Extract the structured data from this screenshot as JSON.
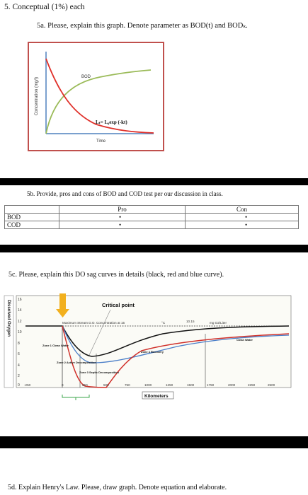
{
  "q5": {
    "title": "5. Conceptual (1%) each"
  },
  "q5a": {
    "text": "5a. Please, explain this graph. Denote parameter as BOD(t) and BODₖ.",
    "figure": {
      "y_label": "Concentration (mg/l)",
      "x_label": "Time",
      "curve1_label": "BOD",
      "curve2_label": "Lₜ= L₀exp (-kt)"
    }
  },
  "q5b": {
    "text": "5b. Provide, pros and cons of BOD and COD test per our discussion in class.",
    "table": {
      "headers": [
        "",
        "Pro",
        "Con"
      ],
      "rows": [
        {
          "label": "BOD",
          "pro": "•",
          "con": "•"
        },
        {
          "label": "COD",
          "pro": "•",
          "con": "•"
        }
      ]
    }
  },
  "q5c": {
    "text": "5c. Please, explain this DO sag curves in details (black, red and blue curve).",
    "figure": {
      "y_label_vertical": "Dissolved Oxygen",
      "critical_point_label": "Critical point",
      "max_stream_label": "Maximum Stream D.O. Concentration at 15",
      "temp_label": "°C",
      "temp_value": "10.15",
      "unit_label": "mg O2/Liter",
      "zone1_label": "Zone 1 Clean Water",
      "zone2_label": "Zone 2 Active Decomposition",
      "zone3_label": "Zone 3 Septic Decomposition",
      "zone4_label": "Zone 4 Recovery",
      "zone5_label": "Clean Water",
      "y_ticks": [
        "16",
        "14",
        "12",
        "10",
        "8",
        "6",
        "4",
        "2",
        "0"
      ],
      "x_ticks": [
        "-250",
        "0",
        "250",
        "500",
        "750",
        "1000",
        "1250",
        "1500",
        "1750",
        "2000",
        "2250",
        "2500"
      ],
      "x_axis_label": "Kilometers"
    }
  },
  "q5d": {
    "text": "5d. Explain Henry's Law. Please, draw graph. Denote equation and elaborate."
  }
}
